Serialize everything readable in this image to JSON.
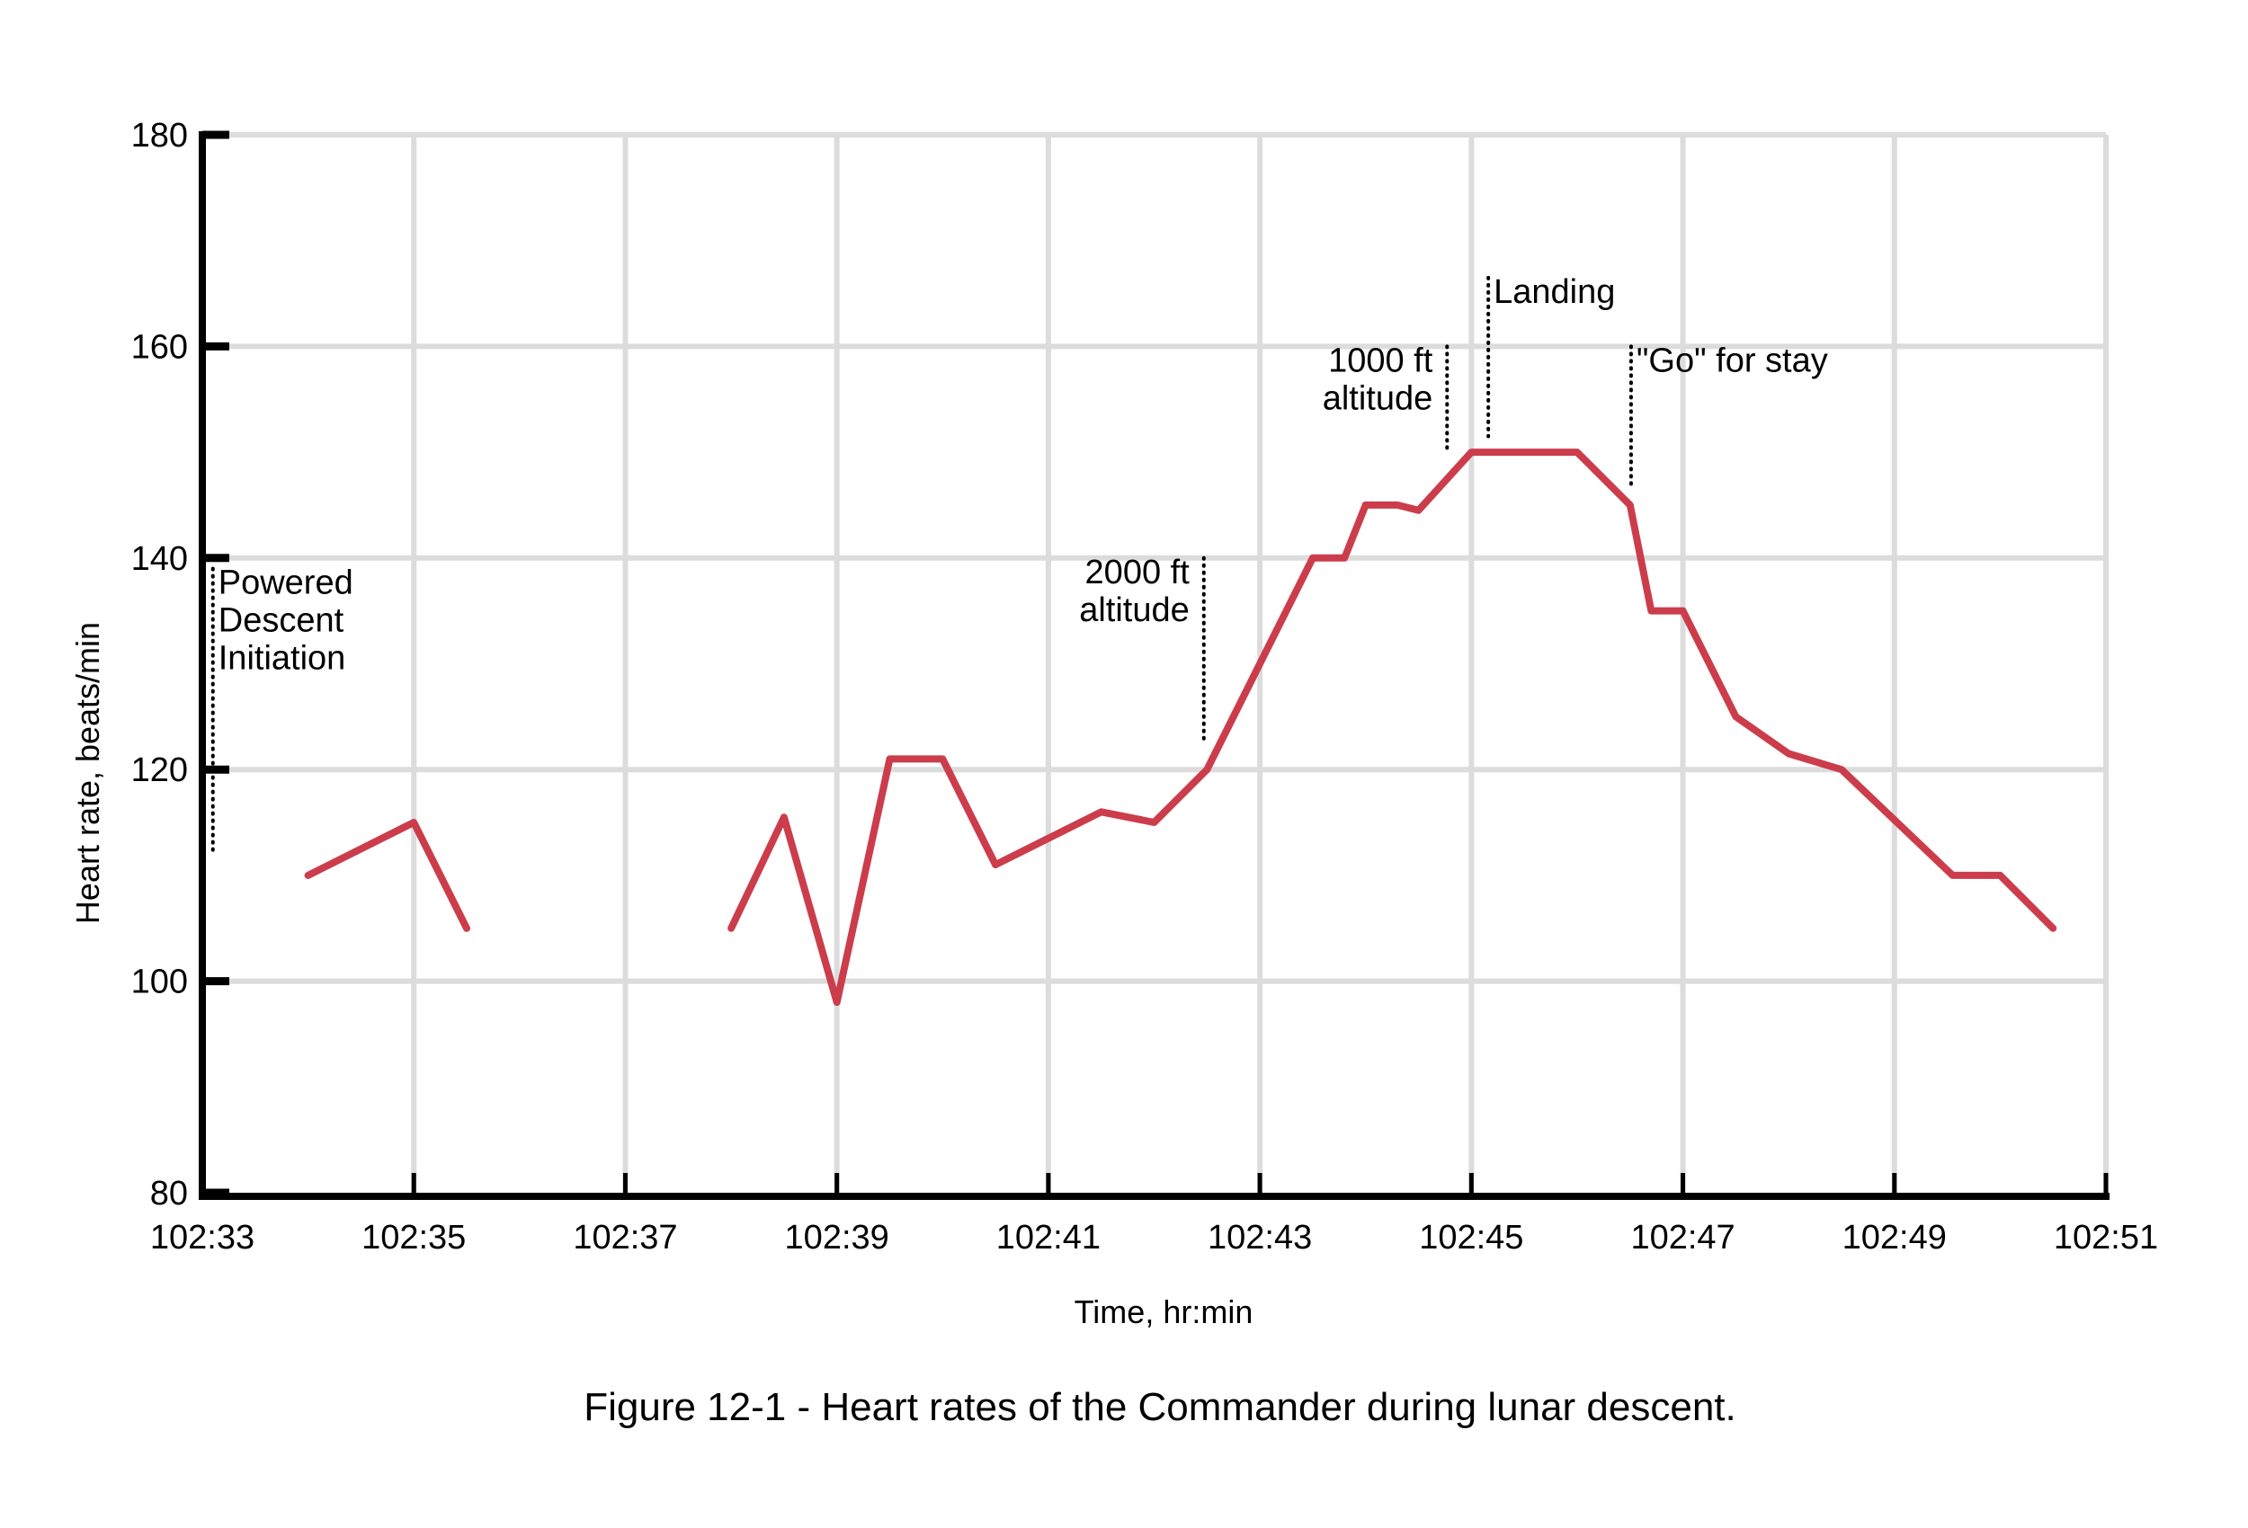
{
  "chart_data": {
    "type": "line",
    "title": "",
    "caption": "Figure 12-1 - Heart rates of the Commander during lunar descent.",
    "xlabel": "Time, hr:min",
    "ylabel": "Heart rate, beats/min",
    "x_unit": "minutes after 102:33 (GET hr:min)",
    "xlim": [
      0,
      18
    ],
    "ylim": [
      80,
      180
    ],
    "grid": true,
    "legend": "none",
    "xticks": [
      {
        "value": 0,
        "label": "102:33"
      },
      {
        "value": 2,
        "label": "102:35"
      },
      {
        "value": 4,
        "label": "102:37"
      },
      {
        "value": 6,
        "label": "102:39"
      },
      {
        "value": 8,
        "label": "102:41"
      },
      {
        "value": 10,
        "label": "102:43"
      },
      {
        "value": 12,
        "label": "102:45"
      },
      {
        "value": 14,
        "label": "102:47"
      },
      {
        "value": 16,
        "label": "102:49"
      },
      {
        "value": 18,
        "label": "102:51"
      }
    ],
    "yticks": [
      {
        "value": 80,
        "label": "80"
      },
      {
        "value": 100,
        "label": "100"
      },
      {
        "value": 120,
        "label": "120"
      },
      {
        "value": 140,
        "label": "140"
      },
      {
        "value": 160,
        "label": "160"
      },
      {
        "value": 180,
        "label": "180"
      }
    ],
    "series": [
      {
        "name": "Commander heart rate",
        "color": "#cc3d4c",
        "segments": [
          {
            "x": [
              1.0,
              2.0,
              2.5
            ],
            "y": [
              110,
              115,
              105
            ]
          },
          {
            "x": [
              5.0,
              5.5,
              6.0,
              6.5,
              7.0,
              7.5,
              8.5,
              9.0,
              9.5,
              10.5,
              10.8,
              11.0,
              11.3,
              11.5,
              12.0,
              13.0,
              13.5,
              13.7,
              14.0,
              14.5,
              15.0,
              15.5,
              16.55,
              17.0,
              17.5
            ],
            "y": [
              105,
              115.5,
              98,
              121,
              121,
              111,
              116,
              115,
              120,
              140,
              140,
              145,
              145,
              144.5,
              150,
              150,
              145,
              135,
              135,
              125,
              121.5,
              120,
              110,
              110,
              105
            ]
          }
        ]
      }
    ],
    "annotations": [
      {
        "id": "pdi",
        "lines": [
          "Powered",
          "Descent",
          "Initiation"
        ],
        "x": 0.1,
        "y_top": 139,
        "y_bottom": 112,
        "text_side": "right"
      },
      {
        "id": "alt2000",
        "lines": [
          "2000 ft",
          "altitude"
        ],
        "x": 9.47,
        "y_top": 140,
        "y_bottom": 122.5,
        "text_side": "left"
      },
      {
        "id": "alt1000",
        "lines": [
          "1000 ft",
          "altitude"
        ],
        "x": 11.77,
        "y_top": 160,
        "y_bottom": 150,
        "text_side": "left"
      },
      {
        "id": "landing",
        "lines": [
          "Landing"
        ],
        "x": 12.16,
        "y_top": 166.5,
        "y_bottom": 151.5,
        "text_side": "right"
      },
      {
        "id": "go",
        "lines": [
          "\"Go\" for stay"
        ],
        "x": 13.51,
        "y_top": 160,
        "y_bottom": 147,
        "text_side": "right"
      }
    ]
  }
}
